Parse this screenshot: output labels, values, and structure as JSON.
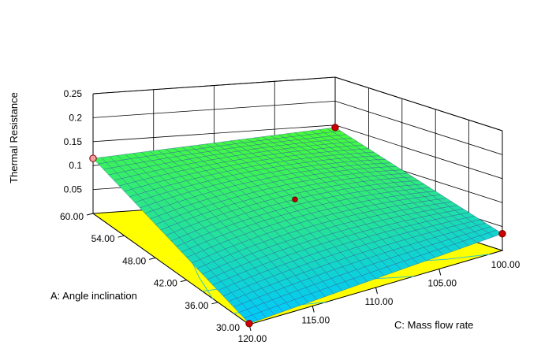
{
  "chart_data": {
    "type": "surface3d",
    "z_axis": {
      "label": "Thermal Resistance",
      "range": [
        0,
        0.25
      ],
      "tick_labels": [
        "0.05",
        "0.1",
        "0.15",
        "0.2",
        "0.25"
      ]
    },
    "a_axis": {
      "label": "A: Angle inclination",
      "range": [
        30,
        60
      ],
      "tick_labels": [
        "30.00",
        "36.00",
        "42.00",
        "48.00",
        "54.00",
        "60.00"
      ]
    },
    "c_axis": {
      "label": "C: Mass flow rate",
      "range": [
        100,
        120
      ],
      "tick_labels": [
        "100.00",
        "105.00",
        "110.00",
        "115.00",
        "120.00"
      ]
    },
    "corner_values": [
      {
        "a": 60,
        "c": 120,
        "z": 0.115
      },
      {
        "a": 60,
        "c": 100,
        "z": 0.145
      },
      {
        "a": 30,
        "c": 100,
        "z": 0.035
      },
      {
        "a": 30,
        "c": 120,
        "z": 0.002
      }
    ],
    "center_point": {
      "a": 45,
      "c": 110,
      "z": 0.098
    },
    "contour_plane_color": "#ffff00",
    "surface_low_color": "#00c8ff",
    "surface_high_color": "#4cff2a",
    "grid": true
  }
}
